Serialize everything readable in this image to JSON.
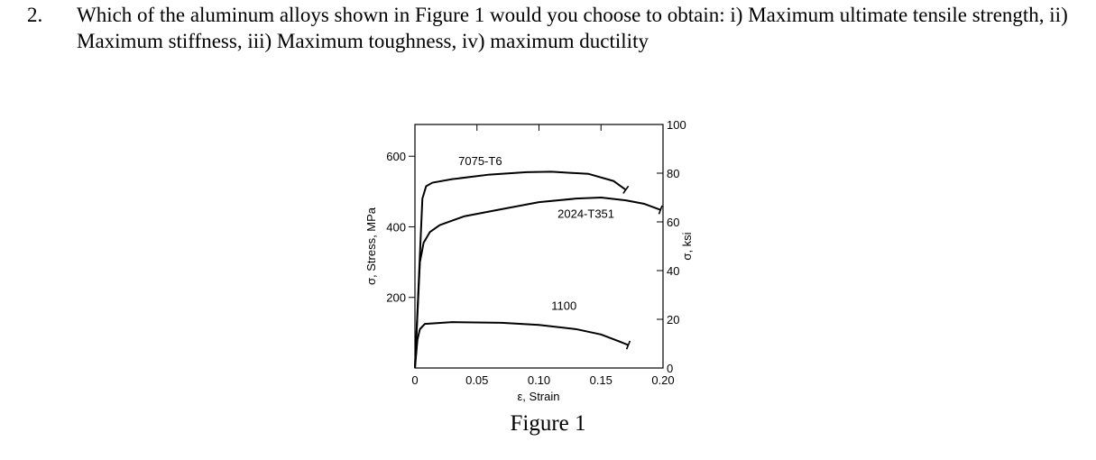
{
  "question": {
    "number": "2.",
    "text": "Which of the aluminum alloys shown in Figure 1 would you choose to obtain: i) Maximum ultimate tensile strength, ii) Maximum stiffness, iii) Maximum toughness, iv) maximum ductility"
  },
  "figure": {
    "caption": "Figure 1"
  },
  "chart_data": {
    "type": "line",
    "xlabel": "ε, Strain",
    "ylabel": "σ, Stress, MPa",
    "ylabel_right": "σ, ksi",
    "xlim": [
      0,
      0.2
    ],
    "ylim": [
      0,
      690
    ],
    "ylim_right": [
      0,
      100
    ],
    "x_ticks": [
      0,
      0.05,
      0.1,
      0.15,
      0.2
    ],
    "x_tick_labels": [
      "0",
      "0.05",
      "0.10",
      "0.15",
      "0.20"
    ],
    "y_ticks": [
      200,
      400,
      600
    ],
    "y_tick_labels": [
      "200",
      "400",
      "600"
    ],
    "y_right_ticks": [
      0,
      20,
      40,
      60,
      80,
      100
    ],
    "y_right_tick_labels": [
      "0",
      "20",
      "40",
      "60",
      "80",
      "100"
    ],
    "grid": false,
    "legend": "none",
    "series": [
      {
        "name": "7075-T6",
        "label_at": [
          0.035,
          575
        ],
        "points": [
          [
            0,
            0
          ],
          [
            0.006,
            480
          ],
          [
            0.009,
            515
          ],
          [
            0.014,
            525
          ],
          [
            0.03,
            535
          ],
          [
            0.06,
            548
          ],
          [
            0.09,
            555
          ],
          [
            0.11,
            556
          ],
          [
            0.14,
            550
          ],
          [
            0.16,
            530
          ],
          [
            0.17,
            505
          ]
        ]
      },
      {
        "name": "2024-T351",
        "label_at": [
          0.115,
          425
        ],
        "points": [
          [
            0,
            0
          ],
          [
            0.004,
            300
          ],
          [
            0.007,
            355
          ],
          [
            0.012,
            385
          ],
          [
            0.02,
            405
          ],
          [
            0.04,
            430
          ],
          [
            0.07,
            450
          ],
          [
            0.1,
            470
          ],
          [
            0.13,
            480
          ],
          [
            0.15,
            483
          ],
          [
            0.17,
            475
          ],
          [
            0.185,
            465
          ],
          [
            0.198,
            448
          ]
        ]
      },
      {
        "name": "1100",
        "label_at": [
          0.11,
          165
        ],
        "points": [
          [
            0,
            0
          ],
          [
            0.002,
            80
          ],
          [
            0.004,
            110
          ],
          [
            0.008,
            125
          ],
          [
            0.03,
            130
          ],
          [
            0.07,
            128
          ],
          [
            0.1,
            122
          ],
          [
            0.13,
            110
          ],
          [
            0.15,
            95
          ],
          [
            0.165,
            75
          ],
          [
            0.172,
            65
          ]
        ]
      }
    ]
  }
}
